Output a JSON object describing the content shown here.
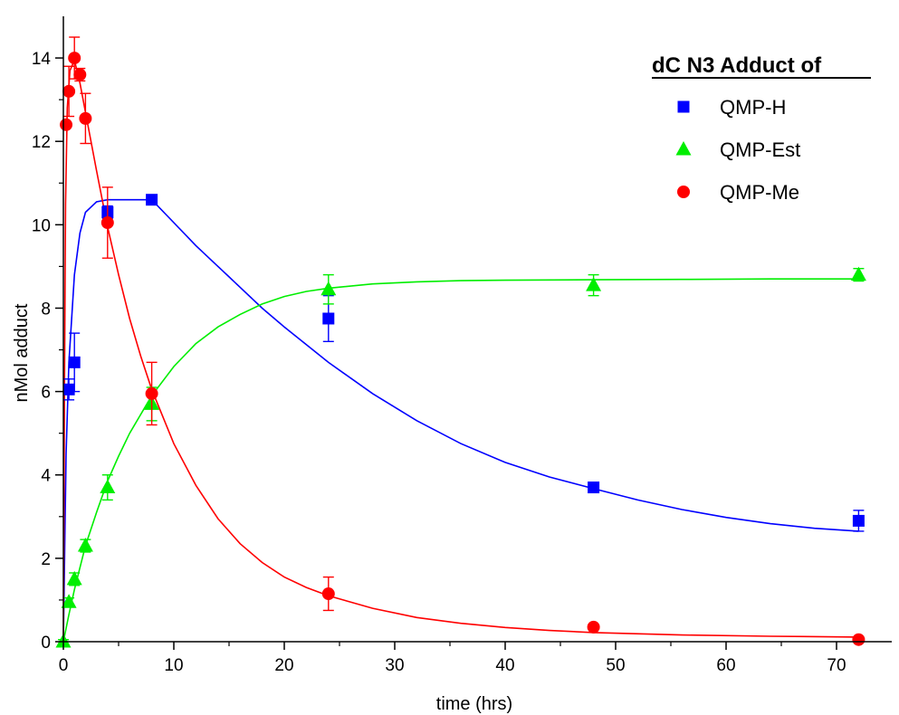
{
  "chart_data": {
    "type": "scatter",
    "title": "",
    "xlabel": "time (hrs)",
    "ylabel": "nMol adduct",
    "xlim": [
      0,
      75
    ],
    "ylim": [
      0,
      15
    ],
    "x_ticks": [
      0,
      10,
      20,
      30,
      40,
      50,
      60,
      70
    ],
    "y_ticks": [
      0,
      2,
      4,
      6,
      8,
      10,
      12,
      14
    ],
    "grid": false,
    "legend": {
      "title": "dC N3 Adduct of",
      "placement": "top-right"
    },
    "series": [
      {
        "name": "QMP-H",
        "color": "#0000ff",
        "marker": "square",
        "points": [
          {
            "x": 0.5,
            "y": 6.05,
            "err": 0.25
          },
          {
            "x": 1,
            "y": 6.7,
            "err": 0.7
          },
          {
            "x": 4,
            "y": 10.3,
            "err": 0.15
          },
          {
            "x": 8,
            "y": 10.6,
            "err": 0.05
          },
          {
            "x": 24,
            "y": 7.75,
            "err": 0.55
          },
          {
            "x": 48,
            "y": 3.7,
            "err": 0.1
          },
          {
            "x": 72,
            "y": 2.9,
            "err": 0.25
          }
        ],
        "fit_curve": [
          [
            0,
            0
          ],
          [
            0.25,
            4.5
          ],
          [
            0.5,
            6.7
          ],
          [
            1,
            8.8
          ],
          [
            1.5,
            9.8
          ],
          [
            2,
            10.3
          ],
          [
            3,
            10.55
          ],
          [
            4,
            10.6
          ],
          [
            8,
            10.6
          ],
          [
            10,
            10.05
          ],
          [
            12,
            9.5
          ],
          [
            14,
            9.0
          ],
          [
            16,
            8.5
          ],
          [
            18,
            8.0
          ],
          [
            20,
            7.55
          ],
          [
            24,
            6.7
          ],
          [
            28,
            5.95
          ],
          [
            32,
            5.3
          ],
          [
            36,
            4.75
          ],
          [
            40,
            4.3
          ],
          [
            44,
            3.95
          ],
          [
            48,
            3.67
          ],
          [
            52,
            3.4
          ],
          [
            56,
            3.17
          ],
          [
            60,
            2.98
          ],
          [
            64,
            2.83
          ],
          [
            68,
            2.72
          ],
          [
            72,
            2.65
          ]
        ]
      },
      {
        "name": "QMP-Est",
        "color": "#00ee00",
        "marker": "triangle",
        "points": [
          {
            "x": 0,
            "y": 0.0,
            "err": 0.05
          },
          {
            "x": 0.5,
            "y": 0.95,
            "err": 0.1
          },
          {
            "x": 1,
            "y": 1.5,
            "err": 0.15
          },
          {
            "x": 2,
            "y": 2.3,
            "err": 0.15
          },
          {
            "x": 4,
            "y": 3.7,
            "err": 0.3
          },
          {
            "x": 8,
            "y": 5.7,
            "err": 0.4
          },
          {
            "x": 24,
            "y": 8.45,
            "err": 0.35
          },
          {
            "x": 48,
            "y": 8.55,
            "err": 0.25
          },
          {
            "x": 72,
            "y": 8.8,
            "err": 0.15
          }
        ],
        "fit_curve": [
          [
            0,
            0
          ],
          [
            0.5,
            0.65
          ],
          [
            1,
            1.25
          ],
          [
            2,
            2.3
          ],
          [
            3,
            3.1
          ],
          [
            4,
            3.85
          ],
          [
            5,
            4.45
          ],
          [
            6,
            5.0
          ],
          [
            8,
            5.9
          ],
          [
            10,
            6.6
          ],
          [
            12,
            7.15
          ],
          [
            14,
            7.55
          ],
          [
            16,
            7.85
          ],
          [
            18,
            8.1
          ],
          [
            20,
            8.28
          ],
          [
            22,
            8.4
          ],
          [
            24,
            8.48
          ],
          [
            28,
            8.58
          ],
          [
            32,
            8.63
          ],
          [
            36,
            8.66
          ],
          [
            40,
            8.67
          ],
          [
            48,
            8.68
          ],
          [
            56,
            8.69
          ],
          [
            64,
            8.7
          ],
          [
            72,
            8.7
          ]
        ]
      },
      {
        "name": "QMP-Me",
        "color": "#ff0000",
        "marker": "circle",
        "points": [
          {
            "x": 0.25,
            "y": 12.4,
            "err": 0
          },
          {
            "x": 0.5,
            "y": 13.2,
            "err": 0.6
          },
          {
            "x": 1,
            "y": 14.0,
            "err": 0.5
          },
          {
            "x": 1.5,
            "y": 13.6,
            "err": 0.15
          },
          {
            "x": 2,
            "y": 12.55,
            "err": 0.6
          },
          {
            "x": 4,
            "y": 10.05,
            "err": 0.85
          },
          {
            "x": 8,
            "y": 5.95,
            "err": 0.75
          },
          {
            "x": 24,
            "y": 1.15,
            "err": 0.4
          },
          {
            "x": 48,
            "y": 0.35,
            "err": 0.05
          },
          {
            "x": 72,
            "y": 0.05,
            "err": 0.05
          }
        ],
        "fit_curve": [
          [
            0,
            0
          ],
          [
            0.1,
            6
          ],
          [
            0.2,
            10.5
          ],
          [
            0.35,
            12.8
          ],
          [
            0.6,
            13.7
          ],
          [
            1,
            13.95
          ],
          [
            1.5,
            13.4
          ],
          [
            2,
            12.7
          ],
          [
            3,
            11.3
          ],
          [
            4,
            9.95
          ],
          [
            5,
            8.8
          ],
          [
            6,
            7.75
          ],
          [
            7,
            6.85
          ],
          [
            8,
            6.05
          ],
          [
            10,
            4.75
          ],
          [
            12,
            3.75
          ],
          [
            14,
            2.95
          ],
          [
            16,
            2.35
          ],
          [
            18,
            1.9
          ],
          [
            20,
            1.55
          ],
          [
            22,
            1.3
          ],
          [
            24,
            1.1
          ],
          [
            28,
            0.8
          ],
          [
            32,
            0.58
          ],
          [
            36,
            0.44
          ],
          [
            40,
            0.34
          ],
          [
            44,
            0.27
          ],
          [
            48,
            0.22
          ],
          [
            56,
            0.16
          ],
          [
            64,
            0.13
          ],
          [
            72,
            0.11
          ]
        ]
      }
    ]
  }
}
